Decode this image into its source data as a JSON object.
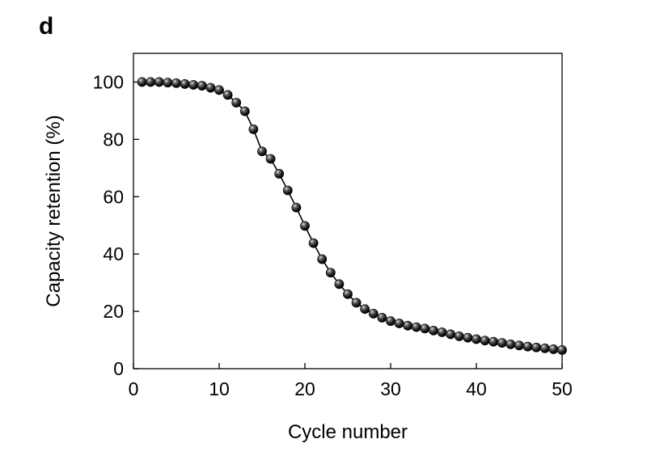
{
  "chart_data": {
    "type": "line",
    "panel_label": "d",
    "title": "",
    "xlabel": "Cycle number",
    "ylabel": "Capacity retention (%)",
    "xlim": [
      0,
      50
    ],
    "ylim": [
      0,
      110
    ],
    "xticks": [
      0,
      10,
      20,
      30,
      40,
      50
    ],
    "yticks": [
      0,
      20,
      40,
      60,
      80,
      100
    ],
    "grid": false,
    "legend": "none",
    "marker": "sphere",
    "colors": {
      "line": "#000000",
      "marker": "#1a1a1a",
      "axes": "#000000"
    },
    "series": [
      {
        "x": [
          1,
          2,
          3,
          4,
          5,
          6,
          7,
          8,
          9,
          10,
          11,
          12,
          13,
          14,
          15,
          16,
          17,
          18,
          19,
          20,
          21,
          22,
          23,
          24,
          25,
          26,
          27,
          28,
          29,
          30,
          31,
          32,
          33,
          34,
          35,
          36,
          37,
          38,
          39,
          40,
          41,
          42,
          43,
          44,
          45,
          46,
          47,
          48,
          49,
          50
        ],
        "y": [
          100,
          100,
          100,
          99.8,
          99.6,
          99.3,
          99,
          98.7,
          98,
          97.2,
          95.5,
          92.8,
          89.8,
          83.5,
          75.8,
          73.2,
          68,
          62.2,
          56.2,
          49.8,
          43.8,
          38.2,
          33.5,
          29.5,
          26,
          23,
          20.8,
          19.2,
          17.8,
          16.6,
          15.8,
          15,
          14.5,
          14,
          13.3,
          12.7,
          12,
          11.3,
          10.8,
          10.3,
          9.8,
          9.4,
          9,
          8.5,
          8.1,
          7.7,
          7.4,
          7.1,
          6.8,
          6.5
        ]
      }
    ]
  }
}
